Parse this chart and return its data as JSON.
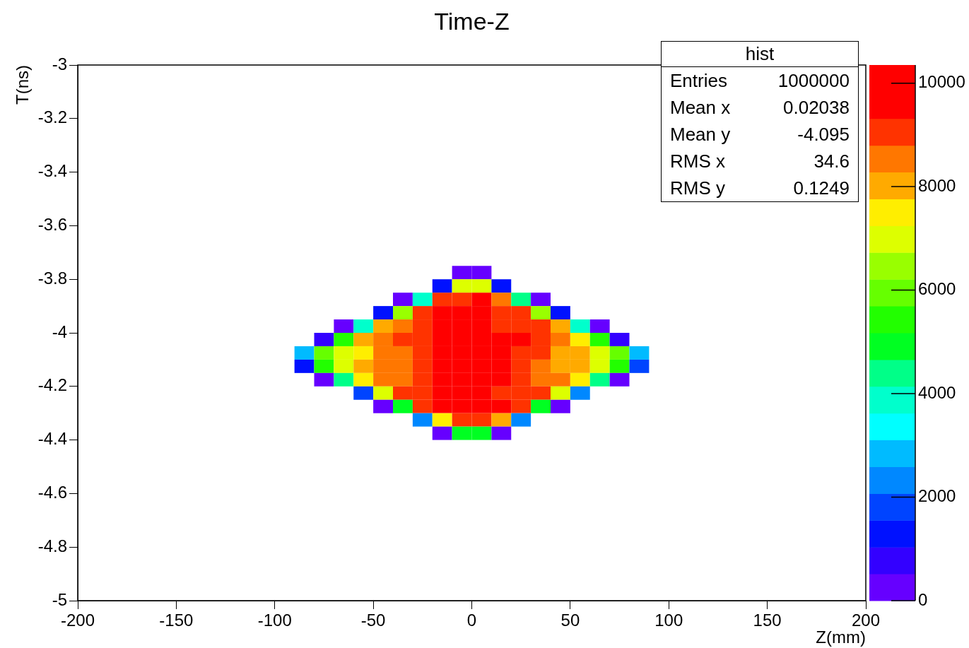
{
  "chart_data": {
    "type": "scatter",
    "title": "Time-Z",
    "xlabel": "Z(mm)",
    "ylabel": "T(ns)",
    "marker": "square",
    "xlim": [
      -200,
      200
    ],
    "xticks": [
      -200,
      -150,
      -100,
      -50,
      0,
      50,
      100,
      150,
      200
    ],
    "ylim": [
      -5,
      -3
    ],
    "yticks": [
      -5,
      -4.8,
      -4.6,
      -4.4,
      -4.2,
      -4,
      -3.8,
      -3.6,
      -3.4,
      -3.2,
      -3
    ],
    "clim": [
      0,
      10350
    ],
    "cticks": [
      0,
      2000,
      4000,
      6000,
      8000,
      10000
    ],
    "annotations": [
      "hist",
      "Entries 1000000",
      "Mean x 0.02038",
      "Mean y -4.095",
      "RMS x 34.6",
      "RMS y 0.1249"
    ],
    "x": [
      -5,
      5,
      -15,
      -5,
      5,
      15,
      -35,
      -25,
      -15,
      -5,
      5,
      15,
      25,
      35,
      -45,
      -35,
      -25,
      -15,
      -5,
      5,
      15,
      25,
      35,
      45,
      -65,
      -55,
      -45,
      -35,
      -25,
      -15,
      -5,
      5,
      15,
      25,
      35,
      45,
      55,
      65,
      -75,
      -65,
      -55,
      -45,
      -35,
      -25,
      -15,
      -5,
      5,
      15,
      25,
      35,
      45,
      55,
      65,
      75,
      -85,
      -75,
      -65,
      -55,
      -45,
      -35,
      -25,
      -15,
      -5,
      5,
      15,
      25,
      35,
      45,
      55,
      65,
      75,
      85,
      -85,
      -75,
      -65,
      -55,
      -45,
      -35,
      -25,
      -15,
      -5,
      5,
      15,
      25,
      35,
      45,
      55,
      65,
      75,
      85,
      -75,
      -65,
      -55,
      -45,
      -35,
      -25,
      -15,
      -5,
      5,
      15,
      25,
      35,
      45,
      55,
      65,
      75,
      -55,
      -45,
      -35,
      -25,
      -15,
      -5,
      5,
      15,
      25,
      35,
      45,
      55,
      -45,
      -35,
      -25,
      -15,
      -5,
      5,
      15,
      25,
      35,
      45,
      -25,
      -15,
      -5,
      5,
      15,
      25,
      -15,
      -5,
      5,
      15
    ],
    "values": [
      -3.775,
      -3.775,
      -3.825,
      -3.825,
      -3.825,
      -3.825,
      -3.875,
      -3.875,
      -3.875,
      -3.875,
      -3.875,
      -3.875,
      -3.875,
      -3.875,
      -3.925,
      -3.925,
      -3.925,
      -3.925,
      -3.925,
      -3.925,
      -3.925,
      -3.925,
      -3.925,
      -3.925,
      -3.975,
      -3.975,
      -3.975,
      -3.975,
      -3.975,
      -3.975,
      -3.975,
      -3.975,
      -3.975,
      -3.975,
      -3.975,
      -3.975,
      -3.975,
      -3.975,
      -4.025,
      -4.025,
      -4.025,
      -4.025,
      -4.025,
      -4.025,
      -4.025,
      -4.025,
      -4.025,
      -4.025,
      -4.025,
      -4.025,
      -4.025,
      -4.025,
      -4.025,
      -4.025,
      -4.075,
      -4.075,
      -4.075,
      -4.075,
      -4.075,
      -4.075,
      -4.075,
      -4.075,
      -4.075,
      -4.075,
      -4.075,
      -4.075,
      -4.075,
      -4.075,
      -4.075,
      -4.075,
      -4.075,
      -4.075,
      -4.125,
      -4.125,
      -4.125,
      -4.125,
      -4.125,
      -4.125,
      -4.125,
      -4.125,
      -4.125,
      -4.125,
      -4.125,
      -4.125,
      -4.125,
      -4.125,
      -4.125,
      -4.125,
      -4.125,
      -4.125,
      -4.175,
      -4.175,
      -4.175,
      -4.175,
      -4.175,
      -4.175,
      -4.175,
      -4.175,
      -4.175,
      -4.175,
      -4.175,
      -4.175,
      -4.175,
      -4.175,
      -4.175,
      -4.175,
      -4.225,
      -4.225,
      -4.225,
      -4.225,
      -4.225,
      -4.225,
      -4.225,
      -4.225,
      -4.225,
      -4.225,
      -4.225,
      -4.225,
      -4.275,
      -4.275,
      -4.275,
      -4.275,
      -4.275,
      -4.275,
      -4.275,
      -4.275,
      -4.275,
      -4.275,
      -4.325,
      -4.325,
      -4.325,
      -4.325,
      -4.325,
      -4.325,
      -4.375,
      -4.375,
      -4.375,
      -4.375
    ],
    "cvalues": [
      260,
      260,
      1290,
      6990,
      6990,
      1290,
      260,
      3880,
      9060,
      9060,
      10000,
      8540,
      4400,
      260,
      1290,
      6470,
      9060,
      10000,
      10000,
      10000,
      9060,
      9060,
      6470,
      1290,
      260,
      3880,
      8020,
      8540,
      9060,
      10000,
      10000,
      10000,
      9060,
      9060,
      9060,
      8020,
      3880,
      260,
      780,
      5430,
      8020,
      8540,
      9060,
      9060,
      10000,
      10000,
      10000,
      10000,
      10000,
      9060,
      8540,
      7500,
      5430,
      780,
      2850,
      5950,
      6990,
      7500,
      8540,
      8540,
      9060,
      10000,
      10000,
      10000,
      10000,
      9060,
      9060,
      8020,
      8020,
      6990,
      5950,
      2850,
      1290,
      5430,
      6990,
      8020,
      8540,
      8540,
      9060,
      10000,
      10000,
      10000,
      10000,
      9060,
      8540,
      8020,
      8020,
      6990,
      5430,
      1810,
      260,
      4400,
      7500,
      8540,
      8540,
      9060,
      10000,
      10000,
      10000,
      10000,
      9060,
      8540,
      8540,
      7500,
      4400,
      260,
      1810,
      6990,
      9060,
      9060,
      10000,
      10000,
      10000,
      9060,
      9060,
      9060,
      6990,
      2330,
      260,
      4920,
      9060,
      10000,
      10000,
      10000,
      10000,
      9060,
      4920,
      260,
      2330,
      7500,
      9060,
      9060,
      8020,
      2330,
      260,
      4920,
      4920,
      260
    ]
  }
}
